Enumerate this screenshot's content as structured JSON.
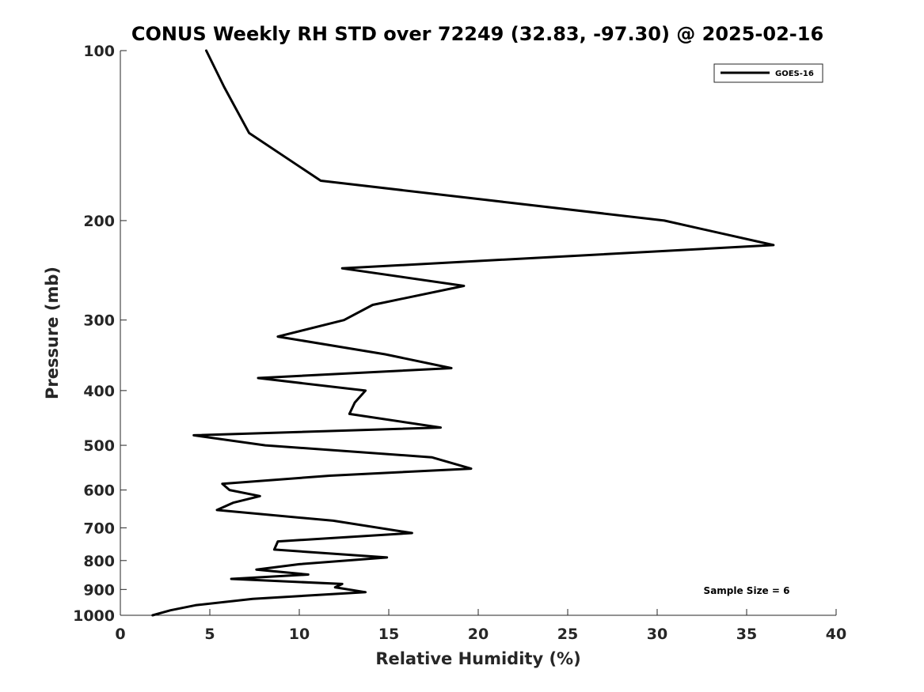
{
  "chart_data": {
    "type": "line",
    "title": "CONUS Weekly RH STD over 72249 (32.83, -97.30) @ 2025-02-16",
    "xlabel": "Relative Humidity (%)",
    "ylabel": "Pressure (mb)",
    "xlim": [
      0,
      40
    ],
    "ylim": [
      100,
      1000
    ],
    "y_scale": "log",
    "y_reversed": true,
    "grid": false,
    "legend_position": "top-right",
    "x_ticks": [
      0,
      5,
      10,
      15,
      20,
      25,
      30,
      35,
      40
    ],
    "y_ticks": [
      100,
      200,
      300,
      400,
      500,
      600,
      700,
      800,
      900,
      1000
    ],
    "annotation": "Sample Size = 6",
    "series": [
      {
        "name": "GOES-16",
        "color": "#000000",
        "x": [
          4.8,
          5.8,
          7.2,
          11.2,
          30.4,
          36.5,
          12.4,
          19.2,
          14.1,
          12.5,
          8.8,
          14.8,
          18.5,
          7.7,
          13.7,
          13.1,
          12.8,
          17.9,
          4.1,
          8.1,
          17.4,
          19.6,
          11.7,
          5.7,
          6.1,
          7.8,
          6.3,
          5.4,
          11.9,
          16.3,
          8.8,
          8.6,
          14.9,
          10.0,
          7.6,
          10.5,
          6.2,
          12.4,
          12.0,
          13.7,
          7.4,
          4.2,
          2.8,
          1.8
        ],
        "y": [
          100,
          116,
          140,
          170,
          200,
          221,
          243,
          261,
          282,
          300,
          321,
          345,
          365,
          380,
          400,
          420,
          440,
          465,
          480,
          500,
          525,
          550,
          566,
          585,
          600,
          615,
          632,
          651,
          680,
          715,
          740,
          765,
          790,
          812,
          830,
          847,
          862,
          880,
          892,
          910,
          935,
          960,
          980,
          1000
        ]
      }
    ]
  }
}
